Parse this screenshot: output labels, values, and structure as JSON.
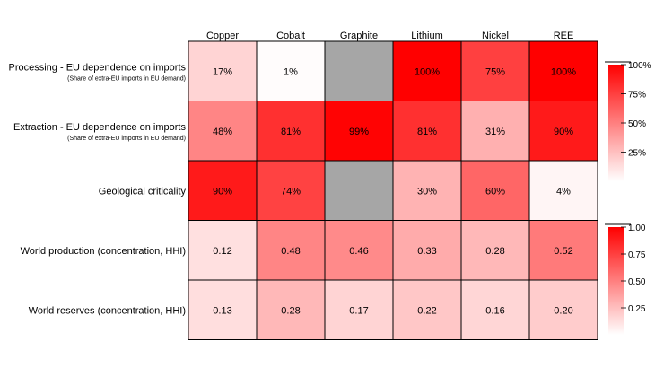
{
  "chart_data": {
    "type": "heatmap",
    "columns": [
      "Copper",
      "Cobalt",
      "Graphite",
      "Lithium",
      "Nickel",
      "REE"
    ],
    "rows": [
      {
        "label": "Processing - EU dependence on imports",
        "sublabel": "(Share of extra-EU imports in EU demand)",
        "scale": "percent",
        "values": [
          17,
          1,
          null,
          100,
          75,
          100
        ],
        "display": [
          "17%",
          "1%",
          "",
          "100%",
          "75%",
          "100%"
        ]
      },
      {
        "label": "Extraction - EU dependence on imports",
        "sublabel": "(Share of extra-EU imports in EU demand)",
        "scale": "percent",
        "values": [
          48,
          81,
          99,
          81,
          31,
          90
        ],
        "display": [
          "48%",
          "81%",
          "99%",
          "81%",
          "31%",
          "90%"
        ]
      },
      {
        "label": "Geological criticality",
        "sublabel": "",
        "scale": "percent",
        "values": [
          90,
          74,
          null,
          30,
          60,
          4
        ],
        "display": [
          "90%",
          "74%",
          "",
          "30%",
          "60%",
          "4%"
        ]
      },
      {
        "label": "World production (concentration, HHI)",
        "sublabel": "",
        "scale": "hhi",
        "values": [
          0.12,
          0.48,
          0.46,
          0.33,
          0.28,
          0.52
        ],
        "display": [
          "0.12",
          "0.48",
          "0.46",
          "0.33",
          "0.28",
          "0.52"
        ]
      },
      {
        "label": "World reserves (concentration, HHI)",
        "sublabel": "",
        "scale": "hhi",
        "values": [
          0.13,
          0.28,
          0.17,
          0.22,
          0.16,
          0.2
        ],
        "display": [
          "0.13",
          "0.28",
          "0.17",
          "0.22",
          "0.16",
          "0.20"
        ]
      }
    ],
    "legends": [
      {
        "scale": "percent",
        "range": [
          0,
          100
        ],
        "ticks": [
          100,
          75,
          50,
          25
        ],
        "tick_labels": [
          "100%",
          "75%",
          "50%",
          "25%"
        ]
      },
      {
        "scale": "hhi",
        "range": [
          0,
          1
        ],
        "ticks": [
          1.0,
          0.75,
          0.5,
          0.25
        ],
        "tick_labels": [
          "1.00",
          "0.75",
          "0.50",
          "0.25"
        ]
      }
    ],
    "colors": {
      "high": "#ff0000",
      "low": "#ffffff",
      "missing": "#a6a6a6",
      "border": "#000000"
    }
  }
}
